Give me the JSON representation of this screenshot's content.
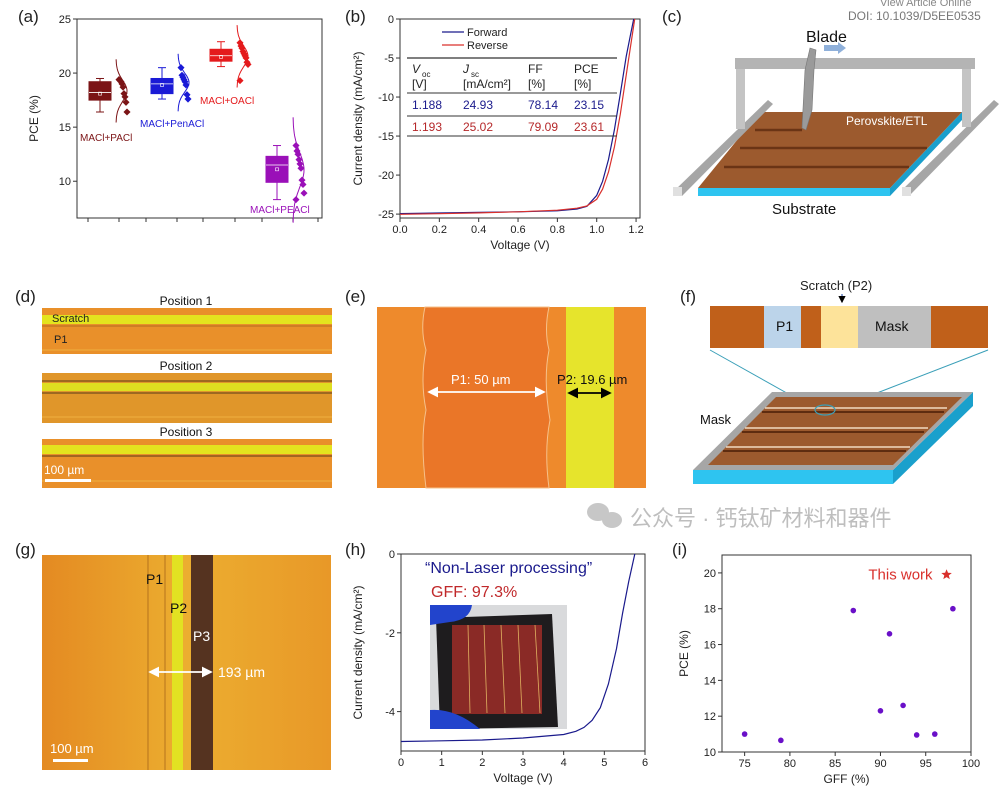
{
  "header": {
    "view_article": "View Article Online",
    "doi": "DOI: 10.1039/D5EE0535"
  },
  "panel_labels": {
    "a": "(a)",
    "b": "(b)",
    "c": "(c)",
    "d": "(d)",
    "e": "(e)",
    "f": "(f)",
    "g": "(g)",
    "h": "(h)",
    "i": "(i)"
  },
  "chart_data": [
    {
      "panel": "a",
      "type": "box",
      "ylabel": "PCE (%)",
      "xlabel": "",
      "ylim": [
        6.6,
        25
      ],
      "yticks": [
        10,
        15,
        20,
        25
      ],
      "grid": false,
      "groups": [
        {
          "name": "MACl+PACl",
          "color": "#7b1416",
          "whisker": [
            16.4,
            19.5
          ],
          "box": [
            17.5,
            19.2
          ],
          "median": 18.2,
          "mean": 18.1,
          "points": [
            19.4,
            19.3,
            19.2,
            19.0,
            18.7,
            18.1,
            17.8,
            17.3,
            16.4
          ]
        },
        {
          "name": "MACl+PenACl",
          "color": "#1a1ad6",
          "whisker": [
            17.6,
            20.5
          ],
          "box": [
            18.1,
            19.5
          ],
          "median": 19.0,
          "mean": 18.9,
          "points": [
            20.5,
            19.8,
            19.6,
            19.4,
            19.2,
            18.9,
            18.0,
            17.6
          ]
        },
        {
          "name": "MACl+OACl",
          "color": "#e41a1c",
          "whisker": [
            20.6,
            22.9
          ],
          "box": [
            21.1,
            22.2
          ],
          "median": 21.6,
          "mean": 21.5,
          "points": [
            22.8,
            22.5,
            22.3,
            22.0,
            21.8,
            21.6,
            21.4,
            21.0,
            20.8,
            19.3
          ]
        },
        {
          "name": "MACl+PEACl",
          "color": "#9a10b8",
          "whisker": [
            8.3,
            13.3
          ],
          "box": [
            9.9,
            12.3
          ],
          "median": 11.5,
          "mean": 11.1,
          "points": [
            13.3,
            12.8,
            12.5,
            12.0,
            11.6,
            11.2,
            10.1,
            9.7,
            8.9,
            8.3
          ]
        }
      ]
    },
    {
      "panel": "b",
      "type": "line",
      "xlabel": "Voltage (V)",
      "ylabel": "Current density (mA/cm²)",
      "xlim": [
        0,
        1.22
      ],
      "ylim": [
        -25.5,
        0
      ],
      "xticks": [
        "0.0",
        "0.2",
        "0.4",
        "0.6",
        "0.8",
        "1.0",
        "1.2"
      ],
      "yticks": [
        "0",
        "-5",
        "-10",
        "-15",
        "-20",
        "-25"
      ],
      "legend": "top-left",
      "series": [
        {
          "name": "Forward",
          "color": "#1a1a8c",
          "x": [
            0,
            0.2,
            0.4,
            0.6,
            0.8,
            0.9,
            0.95,
            1.0,
            1.03,
            1.06,
            1.09,
            1.12,
            1.15,
            1.17,
            1.188
          ],
          "y": [
            -24.93,
            -24.86,
            -24.78,
            -24.7,
            -24.58,
            -24.35,
            -24.0,
            -22.6,
            -20.8,
            -18.0,
            -14.2,
            -9.6,
            -4.8,
            -2.2,
            0
          ]
        },
        {
          "name": "Reverse",
          "color": "#d9302c",
          "x": [
            0,
            0.2,
            0.4,
            0.6,
            0.8,
            0.9,
            0.95,
            1.0,
            1.03,
            1.06,
            1.09,
            1.12,
            1.15,
            1.17,
            1.193
          ],
          "y": [
            -25.02,
            -24.95,
            -24.85,
            -24.7,
            -24.5,
            -24.25,
            -23.95,
            -23.1,
            -21.8,
            -19.6,
            -16.4,
            -12.2,
            -7.2,
            -3.8,
            0
          ]
        }
      ],
      "table": {
        "headers": [
          [
            "V",
            "oc",
            "[V]"
          ],
          [
            "J",
            "sc",
            "[mA/cm²]"
          ],
          [
            "FF",
            "",
            "[%]"
          ],
          [
            "PCE",
            "",
            "[%]"
          ]
        ],
        "rows": [
          {
            "color": "#1a1a8c",
            "cells": [
              "1.188",
              "24.93",
              "78.14",
              "23.15"
            ]
          },
          {
            "color": "#b5282a",
            "cells": [
              "1.193",
              "25.02",
              "79.09",
              "23.61"
            ]
          }
        ]
      }
    },
    {
      "panel": "h",
      "type": "line",
      "xlabel": "Voltage (V)",
      "ylabel": "Current density (mA/cm²)",
      "xlim": [
        0,
        6
      ],
      "ylim": [
        -5,
        0
      ],
      "xticks": [
        "0",
        "1",
        "2",
        "3",
        "4",
        "5",
        "6"
      ],
      "yticks": [
        "0",
        "-2",
        "-4"
      ],
      "annotations": [
        "“Non-Laser processing”",
        "GFF: 97.3%"
      ],
      "series": [
        {
          "color": "#1a1a8c",
          "x": [
            0,
            1,
            2,
            3,
            4,
            4.3,
            4.5,
            4.7,
            4.9,
            5.1,
            5.3,
            5.45,
            5.6,
            5.75
          ],
          "y": [
            -4.76,
            -4.74,
            -4.72,
            -4.67,
            -4.58,
            -4.5,
            -4.4,
            -4.22,
            -3.9,
            -3.3,
            -2.4,
            -1.5,
            -0.7,
            0
          ]
        }
      ]
    },
    {
      "panel": "i",
      "type": "scatter",
      "xlabel": "GFF (%)",
      "ylabel": "PCE (%)",
      "xlim": [
        72.5,
        100
      ],
      "ylim": [
        10,
        21
      ],
      "xticks": [
        "75",
        "80",
        "85",
        "90",
        "95",
        "100"
      ],
      "yticks": [
        "10",
        "12",
        "14",
        "16",
        "18",
        "20"
      ],
      "color": "#6a10c8",
      "x": [
        75,
        79,
        87,
        90,
        91,
        92.5,
        94,
        96,
        98
      ],
      "y": [
        11.0,
        10.65,
        17.9,
        12.3,
        16.6,
        12.6,
        10.95,
        11.0,
        18.0
      ],
      "highlight": {
        "label": "This work",
        "x": 97.3,
        "y": 19.9,
        "color": "#d9302c",
        "marker": "star"
      }
    }
  ],
  "panel_c": {
    "blade": "Blade",
    "layer": "Perovskite/ETL",
    "substrate": "Substrate"
  },
  "panel_d": {
    "positions": [
      "Position 1",
      "Position 2",
      "Position 3"
    ],
    "scratch": "Scratch",
    "p1": "P1",
    "scale_bar": "100 µm"
  },
  "panel_e": {
    "p1": "P1: 50 µm",
    "p2": "P2: 19.6 µm"
  },
  "panel_f": {
    "scratch": "Scratch (P2)",
    "p1": "P1",
    "mask_strip": "Mask",
    "mask_board": "Mask"
  },
  "panel_g": {
    "p1": "P1",
    "p2": "P2",
    "p3": "P3",
    "width": "193 µm",
    "scale_bar": "100 µm"
  },
  "watermark": {
    "text": "公众号 · 钙钛矿材料和器件",
    "icon": "wechat-icon"
  },
  "colors": {
    "orange": "#ec8e2a",
    "yellow": "#e6e21e",
    "brown": "#9c5a2e",
    "substrate": "#2ec4f0"
  }
}
